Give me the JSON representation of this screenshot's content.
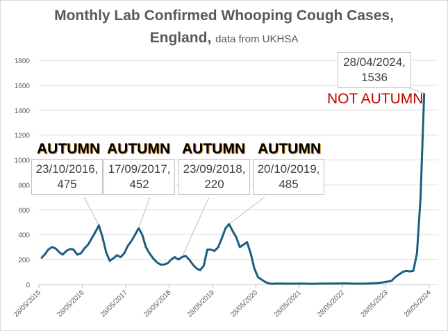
{
  "chart_data": {
    "type": "line",
    "title": "Monthly Lab Confirmed Whooping Cough Cases,",
    "title_line2": "England,",
    "subtitle": "data from UKHSA",
    "xlabel": "",
    "ylabel": "",
    "ylim": [
      0,
      1800
    ],
    "yticks": [
      "0",
      "200",
      "400",
      "600",
      "800",
      "1000",
      "1200",
      "1400",
      "1600",
      "1800"
    ],
    "xticks": [
      "28/05/2015",
      "28/05/2016",
      "28/05/2017",
      "28/05/2018",
      "28/05/2019",
      "28/05/2020",
      "28/05/2021",
      "28/05/2022",
      "28/05/2023",
      "28/05/2024"
    ],
    "grid": true,
    "line_color": "#1b5e7e",
    "series": [
      {
        "name": "Cases",
        "points": [
          [
            "2015-06",
            210
          ],
          [
            "2015-07",
            240
          ],
          [
            "2015-08",
            280
          ],
          [
            "2015-09",
            300
          ],
          [
            "2015-10",
            290
          ],
          [
            "2015-11",
            260
          ],
          [
            "2015-12",
            240
          ],
          [
            "2016-01",
            270
          ],
          [
            "2016-02",
            285
          ],
          [
            "2016-03",
            280
          ],
          [
            "2016-04",
            240
          ],
          [
            "2016-05",
            250
          ],
          [
            "2016-06",
            290
          ],
          [
            "2016-07",
            320
          ],
          [
            "2016-08",
            370
          ],
          [
            "2016-09",
            420
          ],
          [
            "2016-10",
            475
          ],
          [
            "2016-11",
            380
          ],
          [
            "2016-12",
            260
          ],
          [
            "2017-01",
            190
          ],
          [
            "2017-02",
            210
          ],
          [
            "2017-03",
            235
          ],
          [
            "2017-04",
            220
          ],
          [
            "2017-05",
            250
          ],
          [
            "2017-06",
            310
          ],
          [
            "2017-07",
            350
          ],
          [
            "2017-08",
            400
          ],
          [
            "2017-09",
            452
          ],
          [
            "2017-10",
            400
          ],
          [
            "2017-11",
            300
          ],
          [
            "2017-12",
            250
          ],
          [
            "2018-01",
            210
          ],
          [
            "2018-02",
            180
          ],
          [
            "2018-03",
            160
          ],
          [
            "2018-04",
            160
          ],
          [
            "2018-05",
            170
          ],
          [
            "2018-06",
            200
          ],
          [
            "2018-07",
            220
          ],
          [
            "2018-08",
            200
          ],
          [
            "2018-09",
            220
          ],
          [
            "2018-10",
            230
          ],
          [
            "2018-11",
            200
          ],
          [
            "2018-12",
            160
          ],
          [
            "2019-01",
            130
          ],
          [
            "2019-02",
            115
          ],
          [
            "2019-03",
            150
          ],
          [
            "2019-04",
            280
          ],
          [
            "2019-05",
            280
          ],
          [
            "2019-06",
            270
          ],
          [
            "2019-07",
            300
          ],
          [
            "2019-08",
            370
          ],
          [
            "2019-09",
            450
          ],
          [
            "2019-10",
            485
          ],
          [
            "2019-11",
            430
          ],
          [
            "2019-12",
            380
          ],
          [
            "2020-01",
            300
          ],
          [
            "2020-02",
            320
          ],
          [
            "2020-03",
            340
          ],
          [
            "2020-04",
            250
          ],
          [
            "2020-05",
            130
          ],
          [
            "2020-06",
            60
          ],
          [
            "2020-07",
            40
          ],
          [
            "2020-08",
            20
          ],
          [
            "2020-09",
            10
          ],
          [
            "2020-10",
            5
          ],
          [
            "2020-11",
            8
          ],
          [
            "2020-12",
            8
          ],
          [
            "2021-03",
            6
          ],
          [
            "2021-06",
            8
          ],
          [
            "2021-09",
            5
          ],
          [
            "2021-12",
            8
          ],
          [
            "2022-03",
            8
          ],
          [
            "2022-06",
            10
          ],
          [
            "2022-09",
            6
          ],
          [
            "2022-12",
            8
          ],
          [
            "2023-03",
            12
          ],
          [
            "2023-05",
            18
          ],
          [
            "2023-07",
            30
          ],
          [
            "2023-08",
            60
          ],
          [
            "2023-09",
            80
          ],
          [
            "2023-10",
            100
          ],
          [
            "2023-11",
            110
          ],
          [
            "2023-12",
            105
          ],
          [
            "2024-01",
            110
          ],
          [
            "2024-02",
            250
          ],
          [
            "2024-03",
            700
          ],
          [
            "2024-04",
            1536
          ]
        ]
      }
    ],
    "annotations": [
      {
        "label": "AUTUMN",
        "date": "23/10/2016,",
        "value": "475",
        "x": "2016-10",
        "y": 475
      },
      {
        "label": "AUTUMN",
        "date": "17/09/2017,",
        "value": "452",
        "x": "2017-09",
        "y": 452
      },
      {
        "label": "AUTUMN",
        "date": "23/09/2018,",
        "value": "220",
        "x": "2018-09",
        "y": 220
      },
      {
        "label": "AUTUMN",
        "date": "20/10/2019,",
        "value": "485",
        "x": "2019-10",
        "y": 485
      },
      {
        "label": "NOT AUTUMN",
        "date": "28/04/2024,",
        "value": "1536",
        "x": "2024-04",
        "y": 1536
      }
    ]
  }
}
